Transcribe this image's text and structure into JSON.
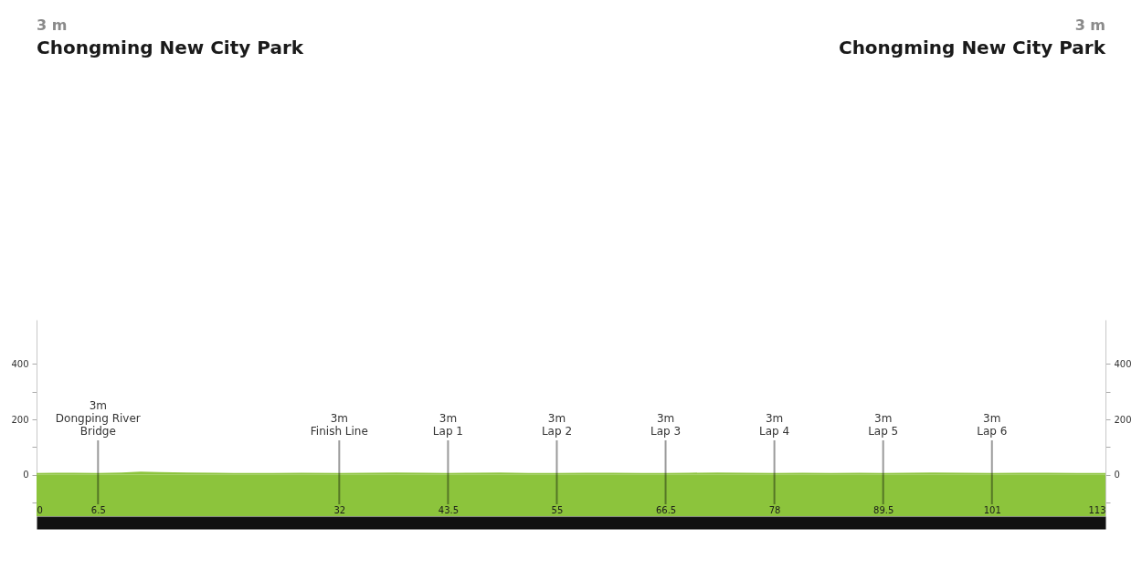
{
  "chart_data": {
    "type": "area",
    "xlim": [
      0,
      113
    ],
    "xticks": [
      0,
      6.5,
      32,
      43.5,
      55,
      66.5,
      78,
      89.5,
      101,
      113
    ],
    "ylim": [
      -150,
      560
    ],
    "yticks": [
      {
        "value": -100,
        "label": null
      },
      0,
      {
        "value": 100,
        "label": null
      },
      200,
      {
        "value": 300,
        "label": null
      },
      400
    ],
    "y2lim": [
      -150,
      560
    ],
    "y2ticks": [
      {
        "value": -100,
        "label": null
      },
      0,
      {
        "value": 100,
        "label": null
      },
      200,
      {
        "value": 300,
        "label": null
      },
      400
    ],
    "x": [
      0,
      2,
      4,
      6.5,
      9,
      11,
      13,
      16,
      19,
      22,
      25,
      28,
      32,
      35,
      38,
      41,
      43.5,
      46,
      49,
      52,
      55,
      58,
      61,
      64,
      66.5,
      69,
      72,
      75,
      78,
      81,
      84,
      87,
      89.5,
      92,
      95,
      98,
      101,
      104,
      107,
      110,
      113
    ],
    "series": [
      {
        "color": "#8cc43c",
        "values": [
          6,
          7,
          7,
          6,
          8,
          11,
          9,
          8,
          7,
          6,
          6,
          7,
          6,
          7,
          8,
          7,
          6,
          7,
          8,
          6,
          6,
          7,
          7,
          6,
          6,
          7,
          8,
          7,
          6,
          7,
          6,
          7,
          6,
          7,
          8,
          7,
          6,
          7,
          7,
          6,
          6
        ]
      }
    ],
    "bands": [
      {
        "axis": "y",
        "from": -150,
        "to": 0,
        "color": "#8cc43c"
      }
    ],
    "ref_lines": [
      {
        "axis": "x",
        "value": 6.5,
        "label": "3m\nDongping River\nBridge"
      },
      {
        "axis": "x",
        "value": 32,
        "label": "3m\nFinish Line"
      },
      {
        "axis": "x",
        "value": 43.5,
        "label": "3m\nLap 1"
      },
      {
        "axis": "x",
        "value": 55,
        "label": "3m\nLap 2"
      },
      {
        "axis": "x",
        "value": 66.5,
        "label": "3m\nLap 3"
      },
      {
        "axis": "x",
        "value": 78,
        "label": "3m\nLap 4"
      },
      {
        "axis": "x",
        "value": 89.5,
        "label": "3m\nLap 5"
      },
      {
        "axis": "x",
        "value": 101,
        "label": "3m\nLap 6"
      }
    ],
    "annotations": [
      "3 m\nChongming New City Park",
      "3 m\nChongming New City Park"
    ]
  }
}
